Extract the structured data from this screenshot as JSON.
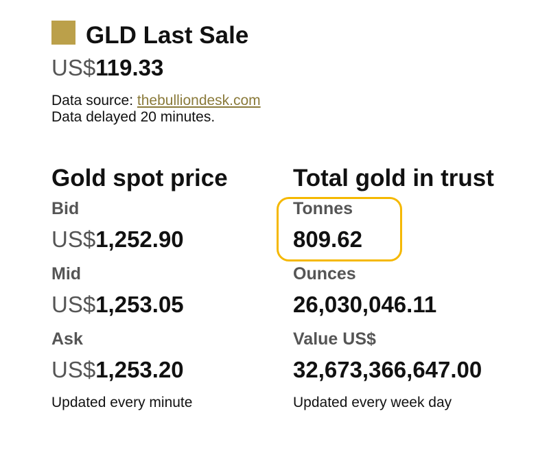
{
  "header": {
    "title": "GLD Last Sale",
    "price": {
      "prefix": "US$",
      "value": "119.33"
    },
    "source_label": "Data source:",
    "source_link": "thebulliondesk.com",
    "delay_note": "Data delayed 20 minutes."
  },
  "spot": {
    "title": "Gold spot price",
    "rows": [
      {
        "label": "Bid",
        "prefix": "US$",
        "value": "1,252.90"
      },
      {
        "label": "Mid",
        "prefix": "US$",
        "value": "1,253.05"
      },
      {
        "label": "Ask",
        "prefix": "US$",
        "value": "1,253.20"
      }
    ],
    "note": "Updated every minute"
  },
  "trust": {
    "title": "Total gold in trust",
    "rows": [
      {
        "label": "Tonnes",
        "value": "809.62"
      },
      {
        "label": "Ounces",
        "value": "26,030,046.11"
      },
      {
        "label": "Value US$",
        "value": "32,673,366,647.00"
      }
    ],
    "note": "Updated every week day"
  }
}
